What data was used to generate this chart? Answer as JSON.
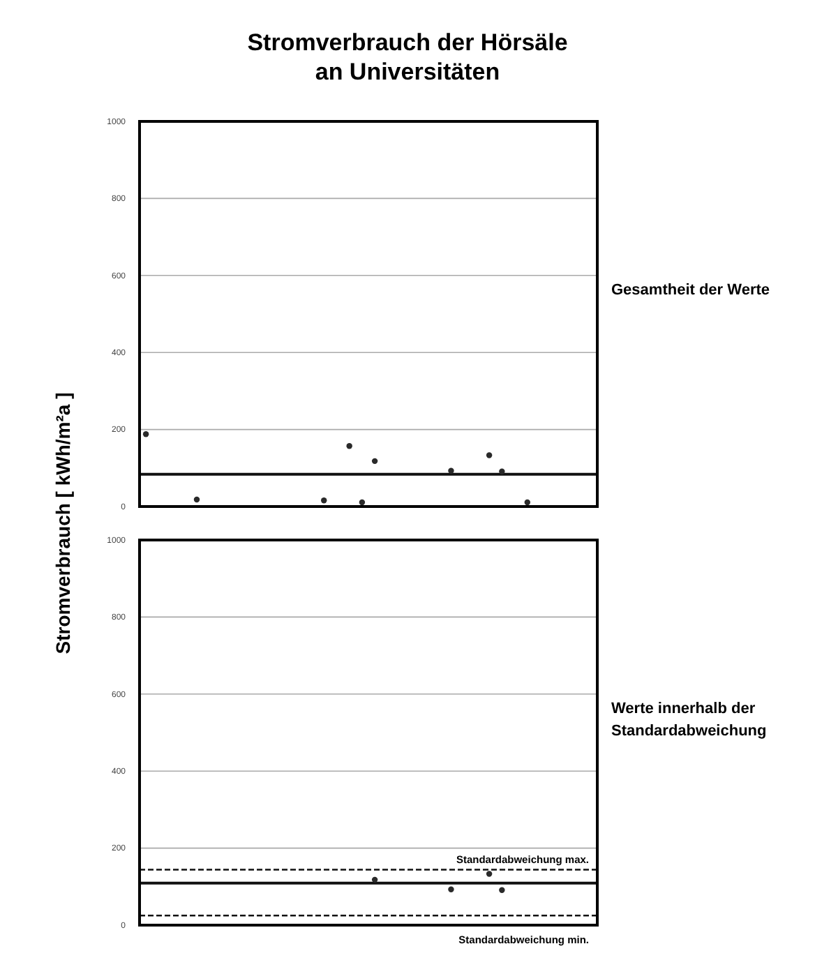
{
  "chart_data": [
    {
      "type": "scatter",
      "title": "Stromverbrauch der Hörsäle an Universitäten",
      "ylabel": "Stromverbrauch  [ kWh/m²a ]",
      "annotations": [
        "Gesamtheit der Werte"
      ],
      "categories": [
        null,
        null,
        null,
        null,
        null,
        null,
        null,
        null,
        null,
        null,
        null,
        null,
        null,
        null,
        null,
        null,
        null,
        null,
        null,
        null,
        null,
        null,
        null,
        null,
        null,
        null,
        null,
        null,
        null,
        null,
        null,
        null,
        null,
        null,
        null,
        null
      ],
      "values": [
        188,
        null,
        null,
        null,
        18,
        null,
        null,
        null,
        null,
        null,
        null,
        null,
        null,
        null,
        16,
        null,
        157,
        11,
        118,
        null,
        null,
        null,
        null,
        null,
        93,
        null,
        null,
        133,
        91,
        null,
        11,
        null,
        null,
        null,
        null,
        null
      ],
      "color": "#2a2a2a",
      "marker": "circle",
      "ylim": [
        0,
        1000
      ],
      "yticks": [
        0,
        200,
        400,
        600,
        800,
        1000
      ],
      "grid": "y",
      "tick_labels": "y",
      "ref_lines": [
        {
          "axis": "y",
          "value": 84,
          "color": "#111111",
          "line_style": "solid"
        }
      ]
    },
    {
      "type": "scatter",
      "annotations": [
        "Werte innerhalb der Standardabweichung"
      ],
      "categories": [
        null,
        null,
        null,
        null,
        null,
        null,
        null,
        null,
        null,
        null,
        null,
        null,
        null,
        null,
        null,
        null,
        null,
        null,
        null,
        null,
        null,
        null,
        null,
        null,
        null,
        null,
        null,
        null,
        null,
        null,
        null,
        null,
        null,
        null,
        null,
        null
      ],
      "values": [
        null,
        null,
        null,
        null,
        null,
        null,
        null,
        null,
        null,
        null,
        null,
        null,
        null,
        null,
        null,
        null,
        null,
        null,
        118,
        null,
        null,
        null,
        null,
        null,
        93,
        null,
        null,
        133,
        91,
        null,
        null,
        null,
        null,
        null,
        null,
        null
      ],
      "color": "#2a2a2a",
      "marker": "circle",
      "ylim": [
        0,
        1000
      ],
      "yticks": [
        0,
        200,
        400,
        600,
        800,
        1000
      ],
      "grid": "y",
      "tick_labels": "y",
      "ref_lines": [
        {
          "axis": "y",
          "value": 144,
          "label": "Standardabweichung max.",
          "color": "#111111",
          "line_style": "dashed"
        },
        {
          "axis": "y",
          "value": 109,
          "color": "#111111",
          "line_style": "solid"
        },
        {
          "axis": "y",
          "value": 25,
          "label": "Standardabweichung min.",
          "color": "#111111",
          "line_style": "dashed"
        }
      ]
    }
  ]
}
